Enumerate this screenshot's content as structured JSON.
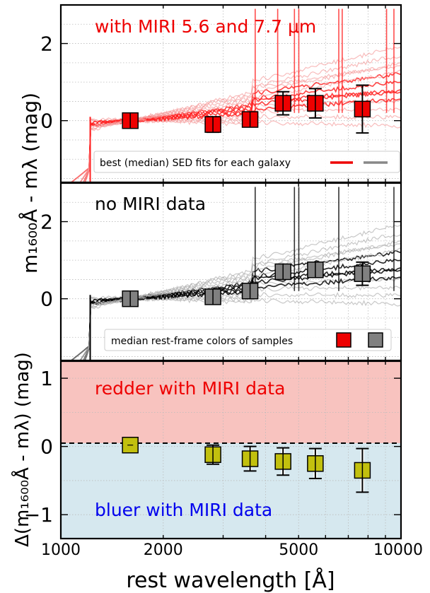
{
  "chart_data": [
    {
      "type": "scatter",
      "panel": "top",
      "annotation": "with MIRI 5.6 and 7.7 μm",
      "xscale": "log",
      "xlim": [
        1000,
        10000
      ],
      "ylim": [
        -1.6,
        3.0
      ],
      "yticks": [
        0,
        2
      ],
      "ytick_labels": [
        "0",
        "2"
      ],
      "legend": {
        "text": "best (median) SED fits for each galaxy",
        "position": "bottom-right"
      },
      "grid": true,
      "colors": {
        "marker": "#ee0000",
        "sed": "#ff2222",
        "sed_faint": "#f5a0a0",
        "legend_gray": "#888888",
        "text": "#ee0000"
      },
      "points": [
        {
          "x": 1600,
          "y": 0.0,
          "err": 0.12
        },
        {
          "x": 2800,
          "y": -0.1,
          "err": 0.2
        },
        {
          "x": 3600,
          "y": 0.03,
          "err": 0.15
        },
        {
          "x": 4500,
          "y": 0.45,
          "err": 0.3
        },
        {
          "x": 5600,
          "y": 0.45,
          "err": 0.38
        },
        {
          "x": 7700,
          "y": 0.3,
          "err": 0.62
        }
      ]
    },
    {
      "type": "scatter",
      "panel": "middle",
      "annotation": "no MIRI data",
      "ylabel": "m₁₆₀₀Å - mλ (mag)",
      "xscale": "log",
      "xlim": [
        1000,
        10000
      ],
      "ylim": [
        -1.6,
        3.0
      ],
      "yticks": [
        0,
        2
      ],
      "ytick_labels": [
        "0",
        "2"
      ],
      "legend": {
        "text": "median rest-frame colors of samples",
        "position": "bottom-right"
      },
      "grid": true,
      "colors": {
        "marker": "#808080",
        "sed": "#000000",
        "sed_faint": "#b0b0b0",
        "legend_red": "#ee0000"
      },
      "points": [
        {
          "x": 1600,
          "y": 0.0,
          "err": 0.1
        },
        {
          "x": 2800,
          "y": 0.05,
          "err": 0.18
        },
        {
          "x": 3600,
          "y": 0.2,
          "err": 0.18
        },
        {
          "x": 4500,
          "y": 0.7,
          "err": 0.18
        },
        {
          "x": 5600,
          "y": 0.75,
          "err": 0.18
        },
        {
          "x": 7700,
          "y": 0.65,
          "err": 0.3
        }
      ]
    },
    {
      "type": "scatter",
      "panel": "bottom",
      "annotation_top": "redder with MIRI data",
      "annotation_bottom": "bluer with MIRI data",
      "ylabel": "Δ(m₁₆₀₀Å - mλ)  (mag)",
      "xlabel": "rest wavelength [Å]",
      "xscale": "log",
      "xlim": [
        1000,
        10000
      ],
      "xticks": [
        1000,
        2000,
        5000,
        10000
      ],
      "xtick_labels": [
        "1000",
        "2000",
        "5000",
        "10000"
      ],
      "ylim": [
        -1.35,
        1.25
      ],
      "yticks": [
        -1,
        0,
        1
      ],
      "ytick_labels": [
        "−1",
        "0",
        "1"
      ],
      "grid": true,
      "colors": {
        "marker": "#c2c00e",
        "redder_band": "#f8c3bf",
        "bluer_band": "#d6e8ef",
        "redder_text": "#ee0000",
        "bluer_text": "#0000ee"
      },
      "points": [
        {
          "x": 1600,
          "y": 0.02,
          "err": 0.0
        },
        {
          "x": 2800,
          "y": -0.12,
          "err": 0.14
        },
        {
          "x": 3600,
          "y": -0.18,
          "err": 0.18
        },
        {
          "x": 4500,
          "y": -0.22,
          "err": 0.2
        },
        {
          "x": 5600,
          "y": -0.25,
          "err": 0.22
        },
        {
          "x": 7700,
          "y": -0.35,
          "err": 0.32
        }
      ]
    }
  ]
}
